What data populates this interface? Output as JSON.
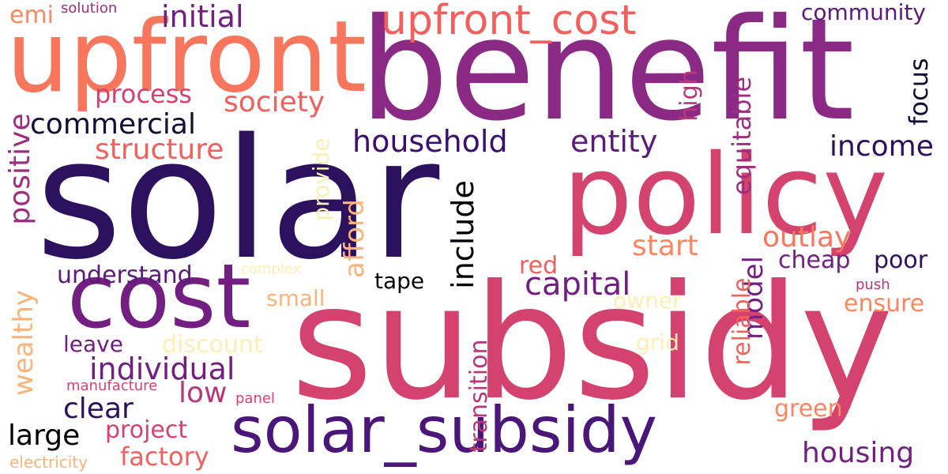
{
  "palette": {
    "deep_purple": "#2c115f",
    "purple": "#721f81",
    "magenta": "#b73779",
    "rose": "#d3436e",
    "salmon": "#f1605d",
    "coral": "#fb8761",
    "peach": "#fcb37a",
    "pale_yellow": "#fcefb3",
    "black": "#000004",
    "navy": "#150e37"
  },
  "words": [
    {
      "text": "solar"
    },
    {
      "text": "benefit"
    },
    {
      "text": "subsidy"
    },
    {
      "text": "upfront"
    },
    {
      "text": "policy"
    },
    {
      "text": "cost"
    },
    {
      "text": "solar_subsidy"
    },
    {
      "text": "upfront_cost"
    },
    {
      "text": "initial"
    },
    {
      "text": "emi"
    },
    {
      "text": "solution"
    },
    {
      "text": "community"
    },
    {
      "text": "process"
    },
    {
      "text": "society"
    },
    {
      "text": "commercial"
    },
    {
      "text": "structure"
    },
    {
      "text": "household"
    },
    {
      "text": "entity"
    },
    {
      "text": "income"
    },
    {
      "text": "focus"
    },
    {
      "text": "high"
    },
    {
      "text": "equitable"
    },
    {
      "text": "positive"
    },
    {
      "text": "provide"
    },
    {
      "text": "afford"
    },
    {
      "text": "include"
    },
    {
      "text": "start"
    },
    {
      "text": "outlay"
    },
    {
      "text": "cheap"
    },
    {
      "text": "poor"
    },
    {
      "text": "model"
    },
    {
      "text": "complex"
    },
    {
      "text": "understand"
    },
    {
      "text": "red"
    },
    {
      "text": "tape"
    },
    {
      "text": "capital"
    },
    {
      "text": "push"
    },
    {
      "text": "wealthy"
    },
    {
      "text": "small"
    },
    {
      "text": "owner"
    },
    {
      "text": "ensure"
    },
    {
      "text": "reliable"
    },
    {
      "text": "leave"
    },
    {
      "text": "discount"
    },
    {
      "text": "grid"
    },
    {
      "text": "individual"
    },
    {
      "text": "manufacture"
    },
    {
      "text": "low"
    },
    {
      "text": "panel"
    },
    {
      "text": "clear"
    },
    {
      "text": "transition"
    },
    {
      "text": "green"
    },
    {
      "text": "large"
    },
    {
      "text": "project"
    },
    {
      "text": "factory"
    },
    {
      "text": "housing"
    },
    {
      "text": "electricity"
    }
  ]
}
